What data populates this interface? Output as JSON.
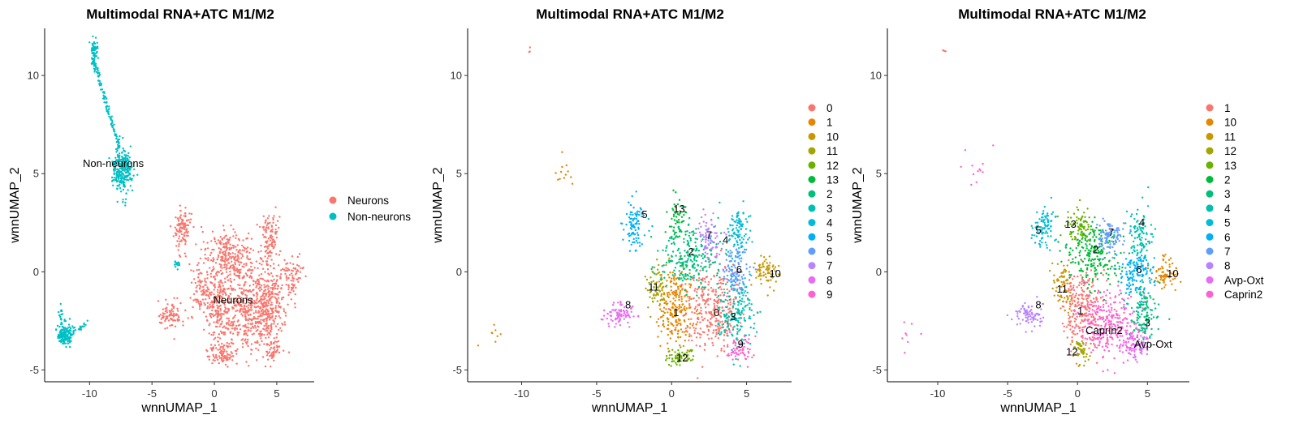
{
  "chart_data": [
    {
      "type": "scatter",
      "title": "Multimodal RNA+ATC M1/M2",
      "xlabel": "wnnUMAP_1",
      "ylabel": "wnnUMAP_2",
      "xlim": [
        -13.6,
        8
      ],
      "ylim": [
        -5.6,
        12.4
      ],
      "xticks": [
        -10,
        -5,
        0,
        5
      ],
      "yticks": [
        -5,
        0,
        5,
        10
      ],
      "grid": false,
      "legend_position": "right",
      "legend": [
        {
          "label": "Neurons",
          "color": "#F8766D"
        },
        {
          "label": "Non-neurons",
          "color": "#00BFC4"
        }
      ],
      "cluster_labels": [
        {
          "text": "Non-neurons",
          "x": -8.1,
          "y": 5.5
        },
        {
          "text": "Neurons",
          "x": 1.5,
          "y": -1.45
        }
      ],
      "clusters": [
        {
          "group": "Neurons",
          "x": 2.8,
          "y": -2.0,
          "sx": 1.1,
          "sy": 1.1,
          "n": 420
        },
        {
          "group": "Neurons",
          "x": 0.3,
          "y": -1.8,
          "sx": 0.7,
          "sy": 1.1,
          "n": 260
        },
        {
          "group": "Neurons",
          "x": 1.2,
          "y": 0.8,
          "sx": 1.0,
          "sy": 0.8,
          "n": 260
        },
        {
          "group": "Neurons",
          "x": 4.4,
          "y": -1.6,
          "sx": 0.6,
          "sy": 1.0,
          "n": 200
        },
        {
          "group": "Neurons",
          "x": 4.5,
          "y": 1.7,
          "sx": 0.4,
          "sy": 0.7,
          "n": 110
        },
        {
          "group": "Neurons",
          "x": 6.2,
          "y": -0.2,
          "sx": 0.45,
          "sy": 0.5,
          "n": 80
        },
        {
          "group": "Neurons",
          "x": -2.5,
          "y": 2.2,
          "sx": 0.35,
          "sy": 0.55,
          "n": 100
        },
        {
          "group": "Neurons",
          "x": -3.5,
          "y": -2.2,
          "sx": 0.5,
          "sy": 0.35,
          "n": 90
        },
        {
          "group": "Neurons",
          "x": 0.6,
          "y": -4.2,
          "sx": 0.6,
          "sy": 0.25,
          "n": 80
        },
        {
          "group": "Neurons",
          "x": 4.6,
          "y": -4.0,
          "sx": 0.35,
          "sy": 0.35,
          "n": 50
        },
        {
          "group": "Neurons",
          "x": -1.1,
          "y": -0.8,
          "sx": 0.35,
          "sy": 0.6,
          "n": 60
        },
        {
          "group": "Non-neurons",
          "x": -9.6,
          "y": 11.2,
          "sx": 0.15,
          "sy": 0.3,
          "n": 60
        },
        {
          "group": "Non-neurons",
          "from": [
            -9.7,
            10.8
          ],
          "to": [
            -7.6,
            6.3
          ],
          "n": 120
        },
        {
          "group": "Non-neurons",
          "x": -7.4,
          "y": 5.2,
          "sx": 0.4,
          "sy": 0.55,
          "n": 260
        },
        {
          "group": "Non-neurons",
          "x": -12.0,
          "y": -3.2,
          "sx": 0.3,
          "sy": 0.28,
          "n": 150
        },
        {
          "group": "Non-neurons",
          "x": -12.3,
          "y": -2.2,
          "sx": 0.08,
          "sy": 0.22,
          "n": 15
        },
        {
          "group": "Non-neurons",
          "from": [
            -11.5,
            -3.1
          ],
          "to": [
            -10.2,
            -2.6
          ],
          "n": 20
        },
        {
          "group": "Non-neurons",
          "x": -3.0,
          "y": 0.4,
          "sx": 0.12,
          "sy": 0.1,
          "n": 15
        }
      ]
    },
    {
      "type": "scatter",
      "title": "Multimodal RNA+ATC M1/M2",
      "xlabel": "wnnUMAP_1",
      "ylabel": "wnnUMAP_2",
      "xlim": [
        -13.6,
        8
      ],
      "ylim": [
        -5.6,
        12.4
      ],
      "xticks": [
        -10,
        -5,
        0,
        5
      ],
      "yticks": [
        -5,
        0,
        5,
        10
      ],
      "grid": false,
      "legend_position": "right",
      "legend": [
        {
          "label": "0",
          "color": "#F8766D"
        },
        {
          "label": "1",
          "color": "#E58700"
        },
        {
          "label": "10",
          "color": "#C99800"
        },
        {
          "label": "11",
          "color": "#A3A500"
        },
        {
          "label": "12",
          "color": "#6BB100"
        },
        {
          "label": "13",
          "color": "#00BA38"
        },
        {
          "label": "2",
          "color": "#00BF7D"
        },
        {
          "label": "3",
          "color": "#00C0AF"
        },
        {
          "label": "4",
          "color": "#00BCD8"
        },
        {
          "label": "5",
          "color": "#00B0F6"
        },
        {
          "label": "6",
          "color": "#619CFF"
        },
        {
          "label": "7",
          "color": "#B983FF"
        },
        {
          "label": "8",
          "color": "#E76BF3"
        },
        {
          "label": "9",
          "color": "#FD61D1"
        }
      ],
      "cluster_labels": [
        {
          "text": "13",
          "x": 0.5,
          "y": 3.2
        },
        {
          "text": "5",
          "x": -1.8,
          "y": 2.9
        },
        {
          "text": "7",
          "x": 2.5,
          "y": 1.85
        },
        {
          "text": "4",
          "x": 3.6,
          "y": 1.6
        },
        {
          "text": "2",
          "x": 1.3,
          "y": 1.0
        },
        {
          "text": "6",
          "x": 4.5,
          "y": 0.1
        },
        {
          "text": "10",
          "x": 6.9,
          "y": -0.1
        },
        {
          "text": "11",
          "x": -1.2,
          "y": -0.8
        },
        {
          "text": "8",
          "x": -2.9,
          "y": -1.7
        },
        {
          "text": "1",
          "x": 0.3,
          "y": -2.1
        },
        {
          "text": "0",
          "x": 3.0,
          "y": -2.1
        },
        {
          "text": "3",
          "x": 4.1,
          "y": -2.3
        },
        {
          "text": "12",
          "x": 0.7,
          "y": -4.4
        },
        {
          "text": "9",
          "x": 4.6,
          "y": -3.7
        }
      ],
      "clusters": [
        {
          "group": "0",
          "x": 2.8,
          "y": -2.0,
          "sx": 1.0,
          "sy": 1.0,
          "n": 320
        },
        {
          "group": "1",
          "x": 0.3,
          "y": -1.8,
          "sx": 0.6,
          "sy": 1.0,
          "n": 230
        },
        {
          "group": "10",
          "x": 6.3,
          "y": -0.1,
          "sx": 0.4,
          "sy": 0.4,
          "n": 70
        },
        {
          "group": "11",
          "x": -1.1,
          "y": -0.8,
          "sx": 0.35,
          "sy": 0.6,
          "n": 60
        },
        {
          "group": "12",
          "x": 0.6,
          "y": -4.3,
          "sx": 0.5,
          "sy": 0.25,
          "n": 60
        },
        {
          "group": "13",
          "x": 0.4,
          "y": 2.5,
          "sx": 0.3,
          "sy": 0.6,
          "n": 50
        },
        {
          "group": "2",
          "x": 1.2,
          "y": 0.8,
          "sx": 1.0,
          "sy": 0.8,
          "n": 230
        },
        {
          "group": "3",
          "x": 4.3,
          "y": -2.0,
          "sx": 0.6,
          "sy": 0.9,
          "n": 170
        },
        {
          "group": "4",
          "x": 4.5,
          "y": 1.9,
          "sx": 0.4,
          "sy": 0.7,
          "n": 100
        },
        {
          "group": "5",
          "x": -2.4,
          "y": 2.3,
          "sx": 0.4,
          "sy": 0.55,
          "n": 90
        },
        {
          "group": "6",
          "x": 4.2,
          "y": 0.0,
          "sx": 0.5,
          "sy": 0.6,
          "n": 110
        },
        {
          "group": "7",
          "x": 2.4,
          "y": 1.7,
          "sx": 0.4,
          "sy": 0.5,
          "n": 80
        },
        {
          "group": "8",
          "x": -3.5,
          "y": -2.2,
          "sx": 0.5,
          "sy": 0.35,
          "n": 80
        },
        {
          "group": "9",
          "x": 4.5,
          "y": -4.0,
          "sx": 0.4,
          "sy": 0.35,
          "n": 55
        },
        {
          "group": "0",
          "x": -9.4,
          "y": 11.3,
          "sx": 0.1,
          "sy": 0.05,
          "n": 3
        },
        {
          "group": "1",
          "x": -7.2,
          "y": 5.1,
          "sx": 0.5,
          "sy": 0.5,
          "n": 12
        },
        {
          "group": "1",
          "x": -12.0,
          "y": -3.2,
          "sx": 0.5,
          "sy": 0.4,
          "n": 8
        }
      ]
    },
    {
      "type": "scatter",
      "title": "Multimodal RNA+ATC M1/M2",
      "xlabel": "wnnUMAP_1",
      "ylabel": "wnnUMAP_2",
      "xlim": [
        -13.6,
        8
      ],
      "ylim": [
        -5.6,
        12.4
      ],
      "xticks": [
        -10,
        -5,
        0,
        5
      ],
      "yticks": [
        -5,
        0,
        5,
        10
      ],
      "grid": false,
      "legend_position": "right",
      "legend": [
        {
          "label": "1",
          "color": "#F8766D"
        },
        {
          "label": "10",
          "color": "#E58700"
        },
        {
          "label": "11",
          "color": "#C99800"
        },
        {
          "label": "12",
          "color": "#A3A500"
        },
        {
          "label": "13",
          "color": "#6BB100"
        },
        {
          "label": "2",
          "color": "#00BA38"
        },
        {
          "label": "3",
          "color": "#00BF7D"
        },
        {
          "label": "4",
          "color": "#00C0AF"
        },
        {
          "label": "5",
          "color": "#00BCD8"
        },
        {
          "label": "6",
          "color": "#00B0F6"
        },
        {
          "label": "7",
          "color": "#619CFF"
        },
        {
          "label": "8",
          "color": "#B983FF"
        },
        {
          "label": "Avp-Oxt",
          "color": "#E76BF3"
        },
        {
          "label": "Caprin2",
          "color": "#FD61D1"
        }
      ],
      "cluster_labels": [
        {
          "text": "13",
          "x": -0.5,
          "y": 2.4
        },
        {
          "text": "5",
          "x": -2.8,
          "y": 2.1
        },
        {
          "text": "7",
          "x": 2.4,
          "y": 2.0
        },
        {
          "text": "4",
          "x": 4.6,
          "y": 2.5
        },
        {
          "text": "2",
          "x": 1.3,
          "y": 1.1
        },
        {
          "text": "6",
          "x": 4.4,
          "y": 0.1
        },
        {
          "text": "10",
          "x": 6.8,
          "y": -0.1
        },
        {
          "text": "11",
          "x": -1.1,
          "y": -0.9
        },
        {
          "text": "8",
          "x": -2.8,
          "y": -1.7
        },
        {
          "text": "1",
          "x": 0.2,
          "y": -2.0
        },
        {
          "text": "3",
          "x": 5.0,
          "y": -2.6
        },
        {
          "text": "Caprin2",
          "x": 1.9,
          "y": -3.0
        },
        {
          "text": "Avp-Oxt",
          "x": 5.4,
          "y": -3.7
        },
        {
          "text": "12",
          "x": -0.4,
          "y": -4.1
        }
      ],
      "clusters": [
        {
          "group": "1",
          "x": 0.3,
          "y": -1.8,
          "sx": 0.7,
          "sy": 1.0,
          "n": 240
        },
        {
          "group": "10",
          "x": 6.3,
          "y": -0.1,
          "sx": 0.4,
          "sy": 0.4,
          "n": 70
        },
        {
          "group": "11",
          "x": -1.1,
          "y": -0.8,
          "sx": 0.35,
          "sy": 0.6,
          "n": 60
        },
        {
          "group": "12",
          "x": 0.2,
          "y": -4.0,
          "sx": 0.3,
          "sy": 0.3,
          "n": 45
        },
        {
          "group": "13",
          "x": 0.2,
          "y": 2.3,
          "sx": 0.5,
          "sy": 0.5,
          "n": 80
        },
        {
          "group": "2",
          "x": 1.2,
          "y": 0.9,
          "sx": 0.9,
          "sy": 0.8,
          "n": 210
        },
        {
          "group": "3",
          "x": 4.8,
          "y": -2.2,
          "sx": 0.5,
          "sy": 0.8,
          "n": 130
        },
        {
          "group": "4",
          "x": 4.5,
          "y": 1.9,
          "sx": 0.4,
          "sy": 0.7,
          "n": 100
        },
        {
          "group": "5",
          "x": -2.4,
          "y": 2.3,
          "sx": 0.4,
          "sy": 0.55,
          "n": 90
        },
        {
          "group": "6",
          "x": 4.2,
          "y": -0.1,
          "sx": 0.6,
          "sy": 0.6,
          "n": 140
        },
        {
          "group": "7",
          "x": 2.4,
          "y": 1.7,
          "sx": 0.5,
          "sy": 0.5,
          "n": 90
        },
        {
          "group": "8",
          "x": -3.5,
          "y": -2.2,
          "sx": 0.5,
          "sy": 0.35,
          "n": 80
        },
        {
          "group": "Avp-Oxt",
          "x": 4.0,
          "y": -3.7,
          "sx": 0.6,
          "sy": 0.4,
          "n": 100
        },
        {
          "group": "Caprin2",
          "x": 2.2,
          "y": -2.6,
          "sx": 1.0,
          "sy": 0.8,
          "n": 260
        },
        {
          "group": "1",
          "x": -9.4,
          "y": 11.3,
          "sx": 0.1,
          "sy": 0.05,
          "n": 3
        },
        {
          "group": "Caprin2",
          "x": -7.2,
          "y": 5.1,
          "sx": 0.5,
          "sy": 0.5,
          "n": 12
        },
        {
          "group": "Caprin2",
          "x": -12.0,
          "y": -3.2,
          "sx": 0.5,
          "sy": 0.4,
          "n": 8
        }
      ]
    }
  ]
}
